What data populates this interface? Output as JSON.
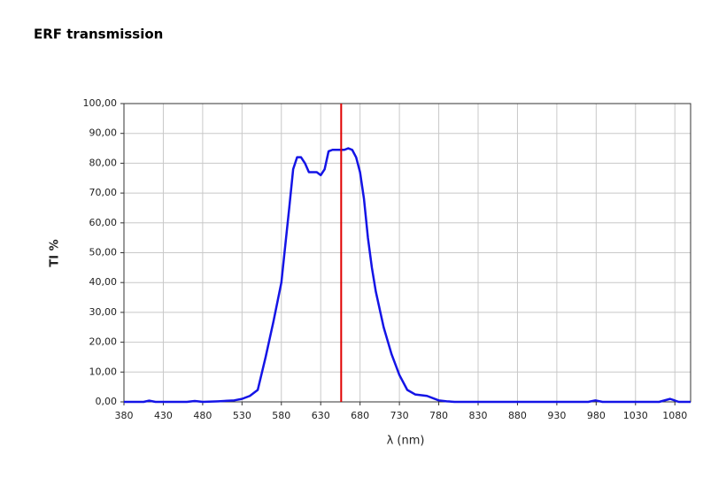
{
  "chart_data": {
    "type": "line",
    "title": "ERF transmission",
    "x_label": "λ (nm)",
    "y_label": "TI %",
    "xlim": [
      380,
      1100
    ],
    "ylim": [
      0,
      100
    ],
    "xticks": [
      380,
      430,
      480,
      530,
      580,
      630,
      680,
      730,
      780,
      830,
      880,
      930,
      980,
      1030,
      1080
    ],
    "yticks": [
      {
        "value": 0,
        "label": "0,00"
      },
      {
        "value": 10,
        "label": "10,00"
      },
      {
        "value": 20,
        "label": "20,00"
      },
      {
        "value": 30,
        "label": "30,00"
      },
      {
        "value": 40,
        "label": "40,00"
      },
      {
        "value": 50,
        "label": "50,00"
      },
      {
        "value": 60,
        "label": "60,00"
      },
      {
        "value": 70,
        "label": "70,00"
      },
      {
        "value": 80,
        "label": "80,00"
      },
      {
        "value": 90,
        "label": "90,00"
      },
      {
        "value": 100,
        "label": "100,00"
      }
    ],
    "grid": true,
    "x": [
      380,
      405,
      412,
      420,
      460,
      470,
      480,
      500,
      520,
      530,
      540,
      550,
      560,
      570,
      580,
      590,
      595,
      600,
      605,
      610,
      615,
      620,
      625,
      630,
      635,
      640,
      645,
      650,
      655,
      660,
      665,
      670,
      675,
      680,
      685,
      690,
      695,
      700,
      710,
      720,
      730,
      740,
      750,
      765,
      780,
      790,
      800,
      970,
      979,
      988,
      1060,
      1074,
      1085,
      1100
    ],
    "series": [
      {
        "color": "#1414e6",
        "values": [
          0,
          0,
          0.4,
          0,
          0,
          0.3,
          0,
          0.2,
          0.5,
          1,
          2,
          4,
          15,
          27,
          40,
          65,
          78,
          82,
          82,
          80,
          77,
          77,
          77,
          76,
          78,
          84,
          84.5,
          84.5,
          84.5,
          84.5,
          85,
          84.5,
          82,
          77,
          68,
          55,
          45,
          37,
          25,
          16,
          9,
          4,
          2.5,
          2,
          0.5,
          0.2,
          0,
          0,
          0.5,
          0,
          0,
          1,
          0,
          0
        ]
      }
    ],
    "reference_line": {
      "x": 656,
      "color": "#e00000"
    }
  }
}
